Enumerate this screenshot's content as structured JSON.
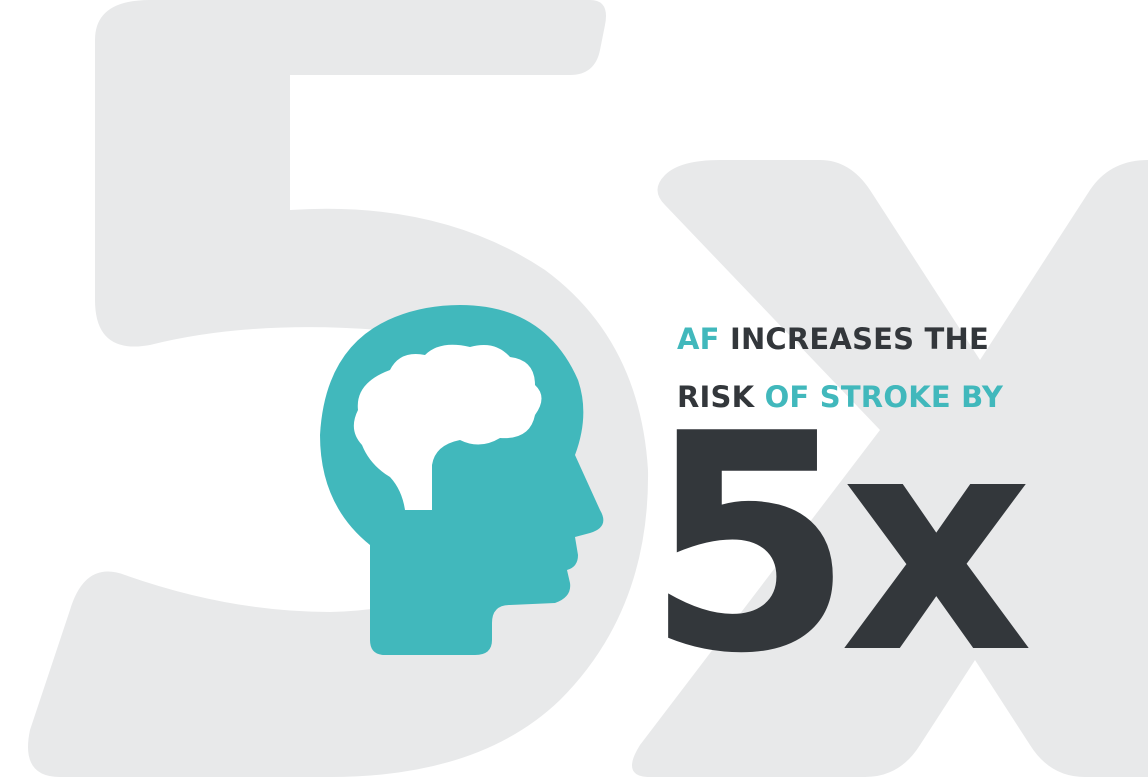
{
  "headline": {
    "line1_accent": "AF",
    "line1_rest": " INCREASES THE",
    "line2_dark": "RISK",
    "line2_accent": " OF STROKE BY"
  },
  "multiplier": "5x",
  "icon": "head-with-brain-icon",
  "colors": {
    "accent": "#41b8bc",
    "dark": "#33373b",
    "background_numeral": "#e8e9ea",
    "background": "#ffffff"
  }
}
